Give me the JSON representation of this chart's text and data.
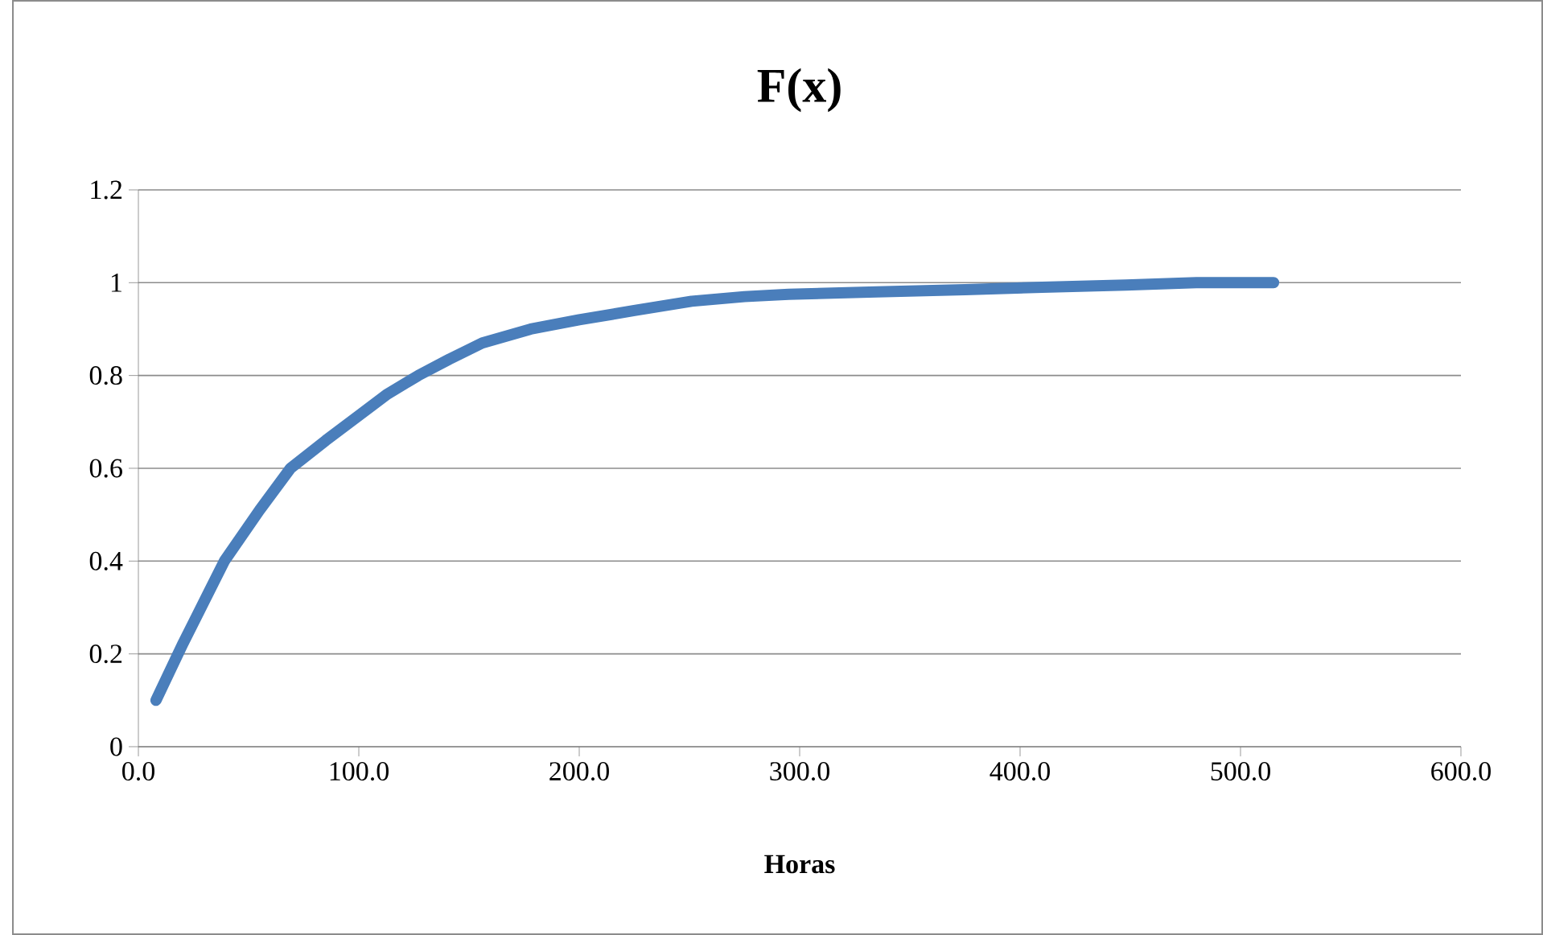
{
  "chart_data": {
    "type": "line",
    "title": "F(x)",
    "xlabel": "Horas",
    "series": [
      {
        "color": "#4a7ebb",
        "x": [
          8,
          20,
          39,
          55,
          69,
          85,
          99,
          113,
          127,
          141,
          156,
          178,
          200,
          225,
          251,
          275,
          295,
          335,
          375,
          410,
          448,
          480,
          515
        ],
        "values": [
          0.1,
          0.22,
          0.4,
          0.51,
          0.6,
          0.66,
          0.71,
          0.76,
          0.8,
          0.835,
          0.87,
          0.9,
          0.92,
          0.94,
          0.96,
          0.97,
          0.975,
          0.98,
          0.985,
          0.99,
          0.995,
          1.0,
          1.0
        ]
      }
    ],
    "xlim": [
      0,
      600
    ],
    "ylim": [
      0,
      1.2
    ],
    "xticks": [
      {
        "value": 0,
        "label": "0.0"
      },
      {
        "value": 100,
        "label": "100.0"
      },
      {
        "value": 200,
        "label": "200.0"
      },
      {
        "value": 300,
        "label": "300.0"
      },
      {
        "value": 400,
        "label": "400.0"
      },
      {
        "value": 500,
        "label": "500.0"
      },
      {
        "value": 600,
        "label": "600.0"
      }
    ],
    "yticks": [
      0,
      0.2,
      0.4,
      0.6,
      0.8,
      1,
      1.2
    ],
    "grid": "y",
    "marker": "none",
    "line_style": "solid"
  }
}
